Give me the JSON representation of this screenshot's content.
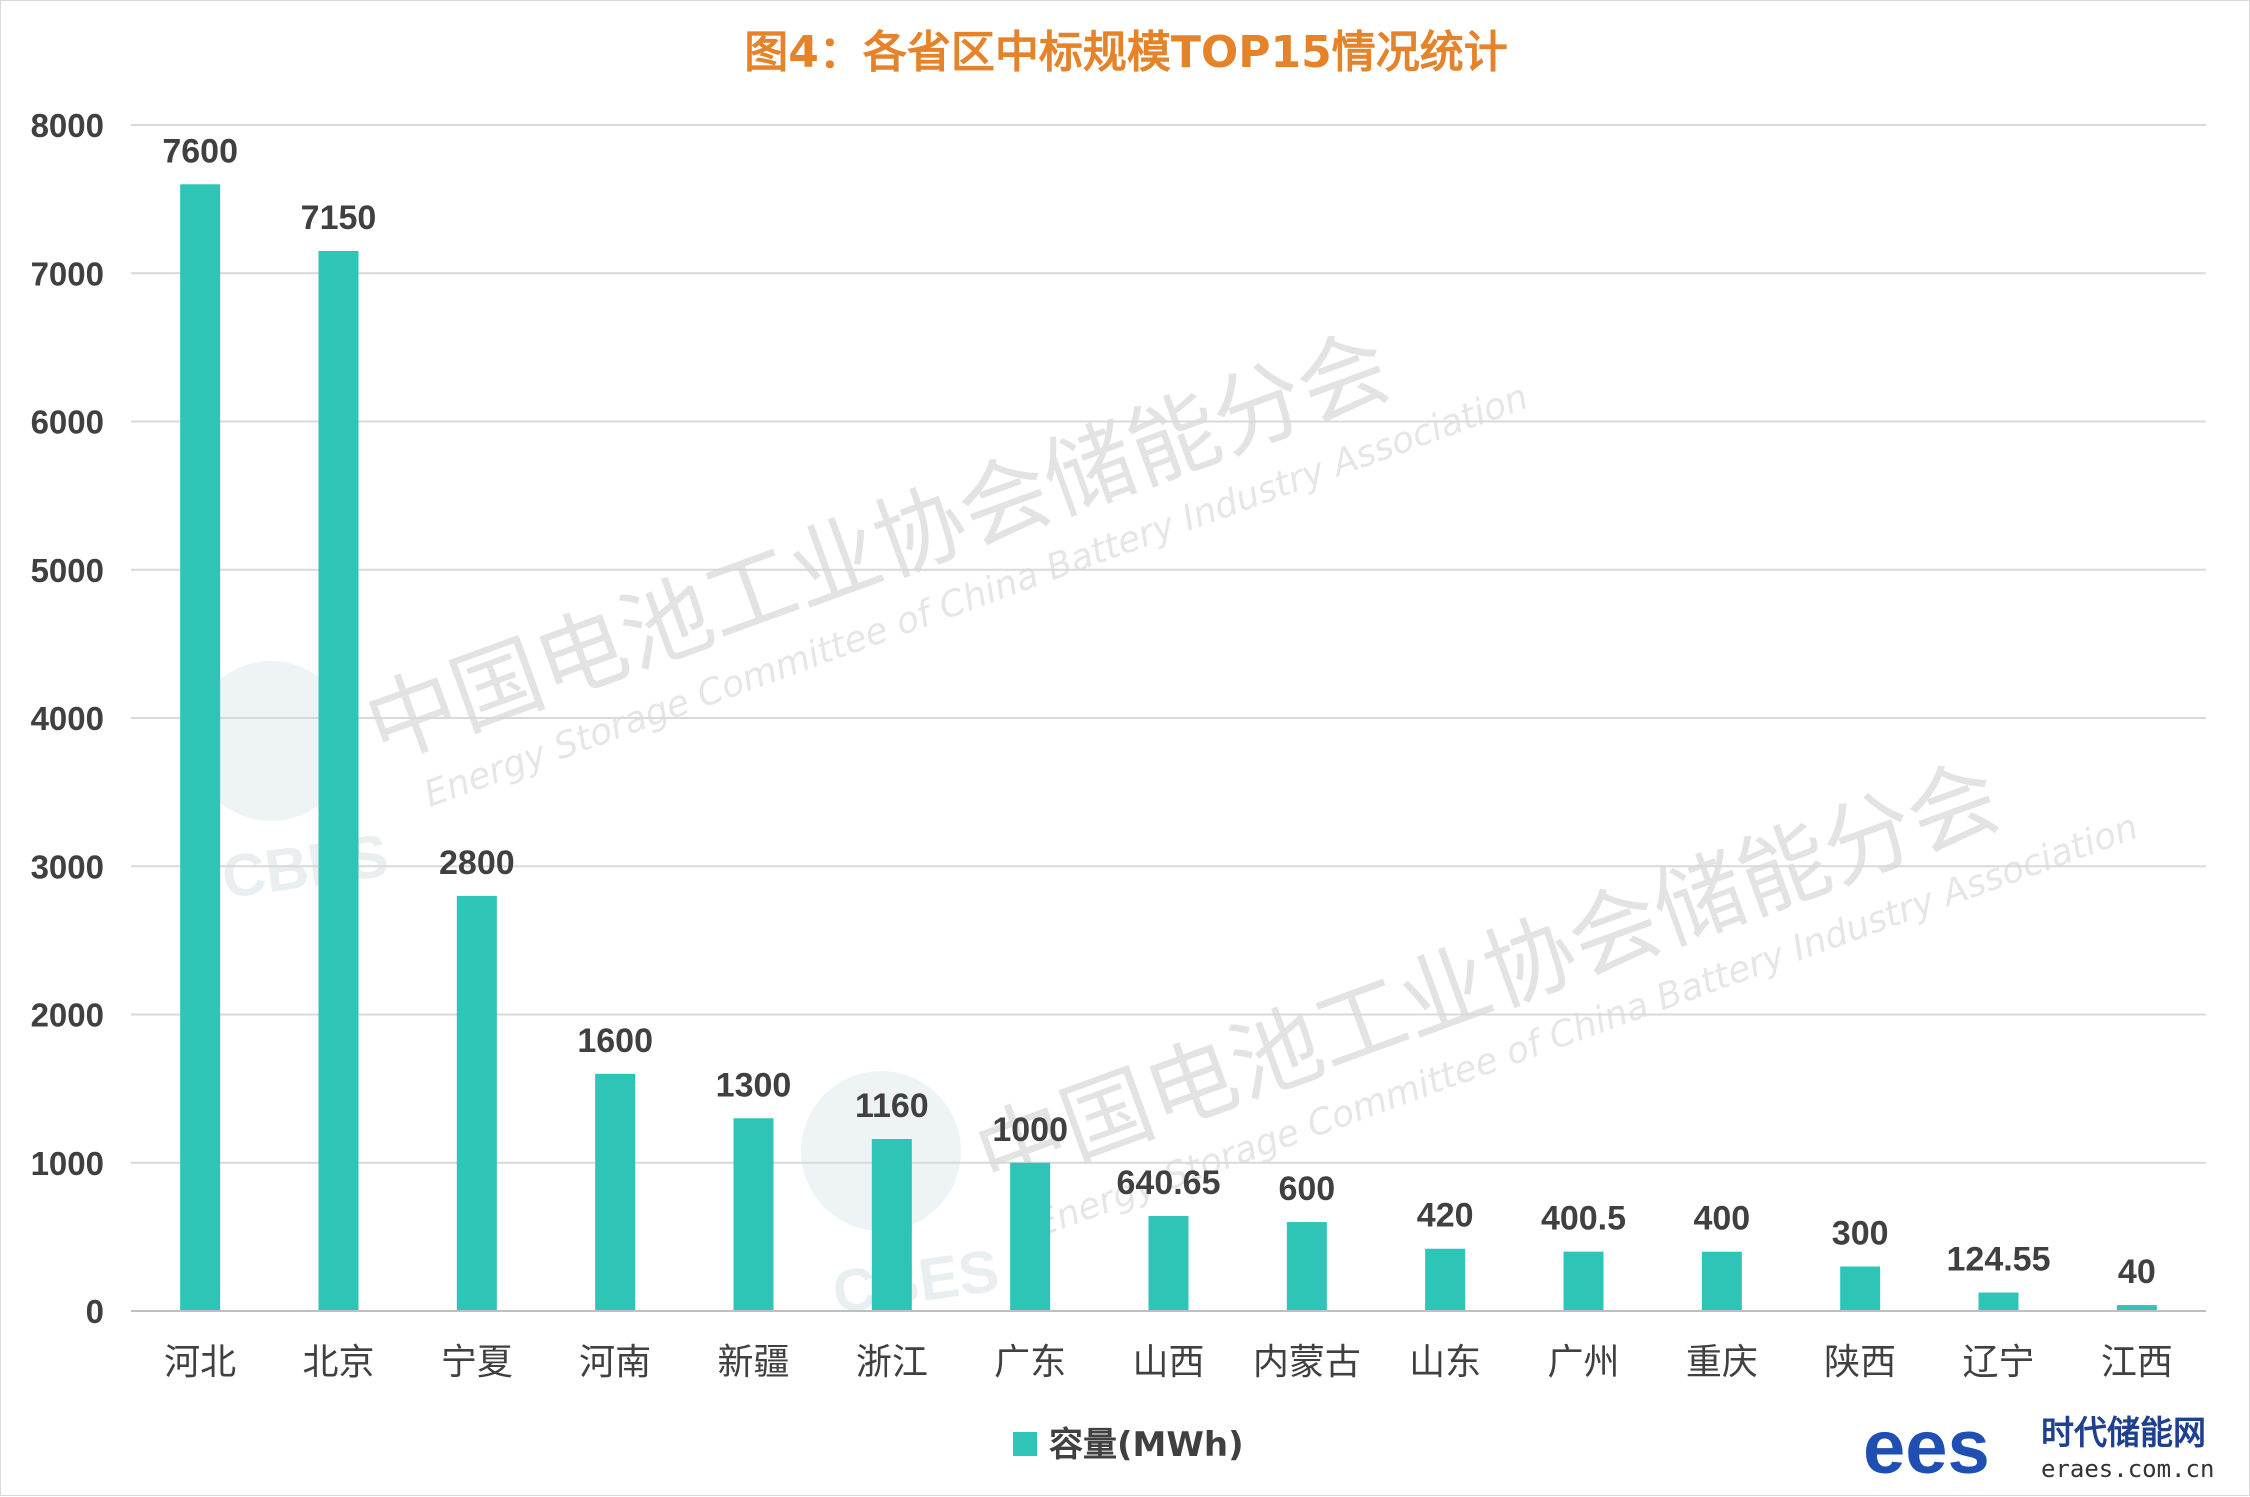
{
  "colors": {
    "bar": "#2ec4b6",
    "title": "#e5832a",
    "grid": "#d9d9d9",
    "text": "#404040",
    "brand": "#1f4fb3"
  },
  "watermark": {
    "text_cn": "中国电池工业协会储能分会",
    "text_en": "Energy Storage Committee of China Battery Industry Association",
    "logo_text": "CBES"
  },
  "brand": {
    "logo_text": "ees",
    "name": "时代储能网",
    "url": "eraes.com.cn"
  },
  "chart_data": {
    "type": "bar",
    "title": "图4：各省区中标规模TOP15情况统计",
    "xlabel": "",
    "ylabel": "",
    "ylim": [
      0,
      8000
    ],
    "yticks": [
      0,
      1000,
      2000,
      3000,
      4000,
      5000,
      6000,
      7000,
      8000
    ],
    "grid": true,
    "legend_position": "bottom",
    "categories": [
      "河北",
      "北京",
      "宁夏",
      "河南",
      "新疆",
      "浙江",
      "广东",
      "山西",
      "内蒙古",
      "山东",
      "广州",
      "重庆",
      "陕西",
      "辽宁",
      "江西"
    ],
    "series": [
      {
        "name": "容量(MWh)",
        "values": [
          7600,
          7150,
          2800,
          1600,
          1300,
          1160,
          1000,
          640.65,
          600,
          420,
          400.5,
          400,
          300,
          124.55,
          40
        ],
        "labels": [
          "7600",
          "7150",
          "2800",
          "1600",
          "1300",
          "1160",
          "1000",
          "640.65",
          "600",
          "420",
          "400.5",
          "400",
          "300",
          "124.55",
          "40"
        ]
      }
    ]
  }
}
